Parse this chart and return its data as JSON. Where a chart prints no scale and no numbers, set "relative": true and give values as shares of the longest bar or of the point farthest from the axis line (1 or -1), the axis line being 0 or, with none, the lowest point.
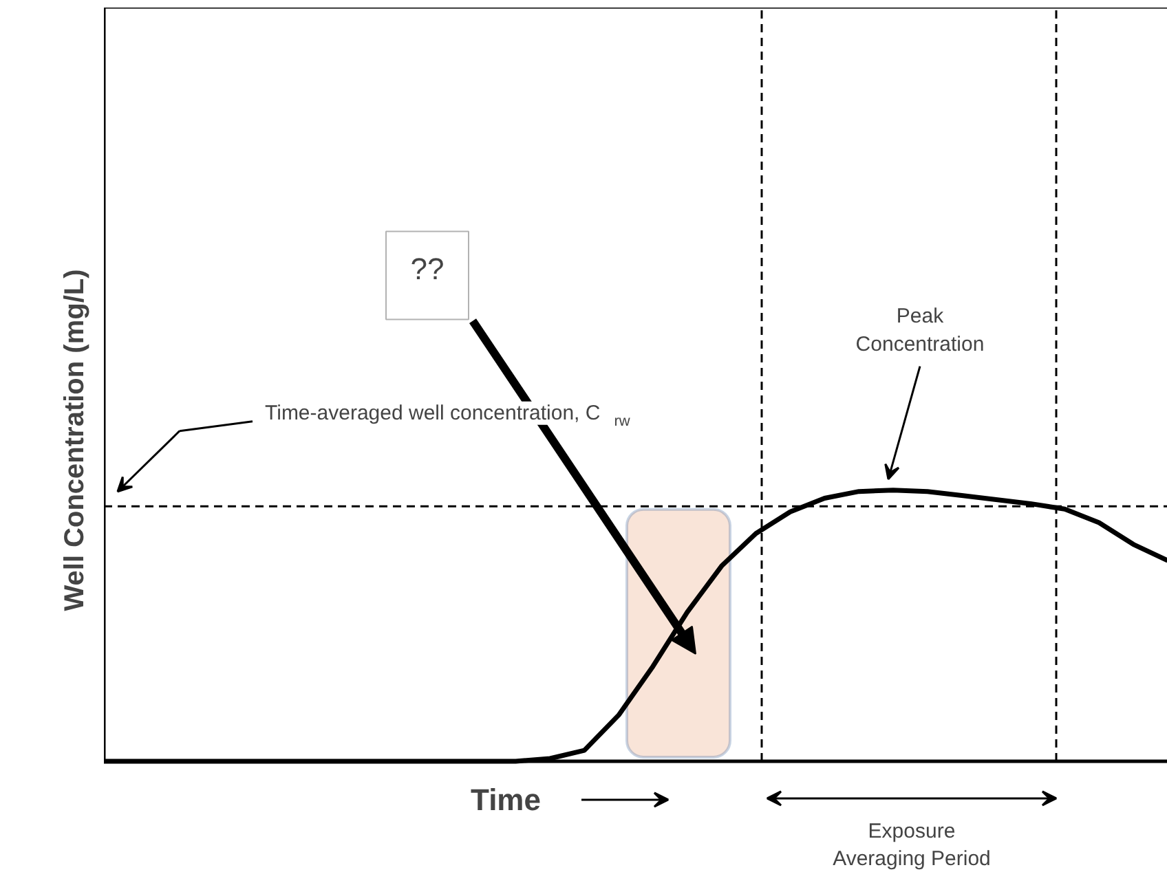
{
  "chart_data": {
    "type": "line",
    "relative": true,
    "xlabel": "Time",
    "ylabel": "Well Concentration (mg/L)",
    "categories": [
      null,
      null,
      null,
      null,
      null,
      null,
      null,
      null,
      null,
      null,
      null,
      null,
      null,
      null,
      null,
      null,
      null,
      null,
      null,
      null,
      null,
      null,
      null,
      null,
      null,
      null,
      null,
      null,
      null,
      null,
      null,
      null
    ],
    "series": [
      {
        "color": "#000000",
        "values": [
          0,
          0,
          0,
          0,
          0,
          0,
          0,
          0,
          0,
          0,
          0,
          0,
          0,
          0.01,
          0.04,
          0.17,
          0.35,
          0.55,
          0.72,
          0.84,
          0.92,
          0.97,
          0.995,
          1.0,
          0.995,
          0.98,
          0.965,
          0.95,
          0.93,
          0.88,
          0.8,
          0.74
        ]
      }
    ],
    "ref_lines": [
      {
        "axis": "y",
        "value": 0.94,
        "line_style": "dashed",
        "color": "#000000"
      }
    ],
    "annotations": [
      "Time-averaged well concentration, C$_{rw}$",
      "Peak\nConcentration",
      "??",
      "Exposure\nAveraging Period"
    ],
    "marker": "none",
    "line_style": "solid"
  }
}
